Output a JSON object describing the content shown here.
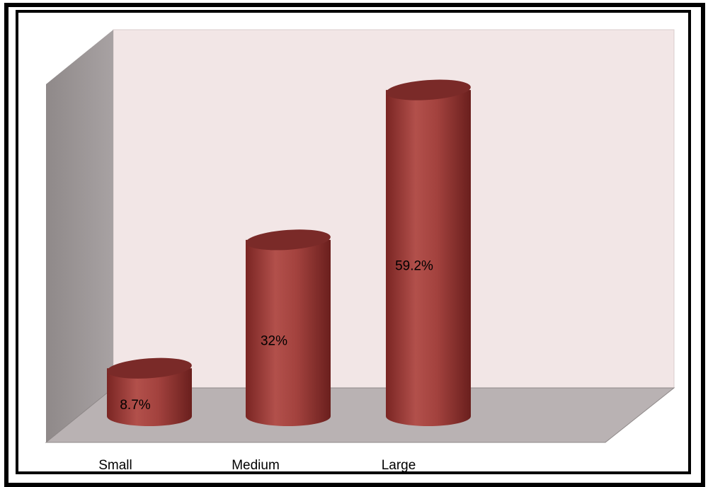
{
  "chart_data": {
    "type": "bar",
    "style": "3d-cylinder",
    "categories": [
      "Small",
      "Medium",
      "Large"
    ],
    "values": [
      8.7,
      32,
      59.2
    ],
    "value_labels": [
      "8.7%",
      "32%",
      "59.2%"
    ],
    "title": "",
    "xlabel": "",
    "ylabel": "",
    "ylim": [
      0,
      70
    ],
    "grid": false,
    "legend": "none",
    "colors": {
      "bar": "#a0403c",
      "bar_top": "#7a2a28",
      "back_wall": "#f2e6e6",
      "side_wall": "#a59fa0",
      "floor": "#b9b2b3"
    }
  }
}
